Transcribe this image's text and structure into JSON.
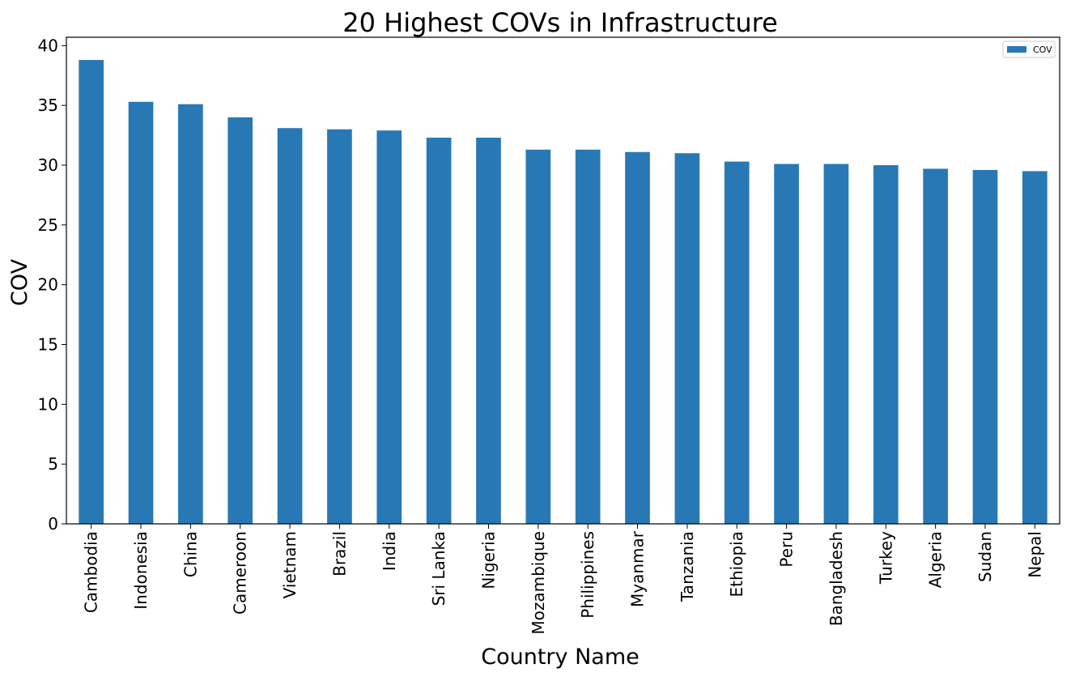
{
  "chart_data": {
    "type": "bar",
    "title": "20 Highest COVs in Infrastructure",
    "xlabel": "Country Name",
    "ylabel": "COV",
    "categories": [
      "Cambodia",
      "Indonesia",
      "China",
      "Cameroon",
      "Vietnam",
      "Brazil",
      "India",
      "Sri Lanka",
      "Nigeria",
      "Mozambique",
      "Philippines",
      "Myanmar",
      "Tanzania",
      "Ethiopia",
      "Peru",
      "Bangladesh",
      "Turkey",
      "Algeria",
      "Sudan",
      "Nepal"
    ],
    "series": [
      {
        "name": "COV",
        "color": "#2878b5",
        "values": [
          38.8,
          35.3,
          35.1,
          34.0,
          33.1,
          33.0,
          32.9,
          32.3,
          32.3,
          31.3,
          31.3,
          31.1,
          31.0,
          30.3,
          30.1,
          30.1,
          30.0,
          29.7,
          29.6,
          29.5
        ]
      }
    ],
    "ylim": [
      0,
      40.7
    ],
    "yticks": [
      0,
      5,
      10,
      15,
      20,
      25,
      30,
      35,
      40
    ],
    "grid": false,
    "legend_position": "top-right"
  }
}
